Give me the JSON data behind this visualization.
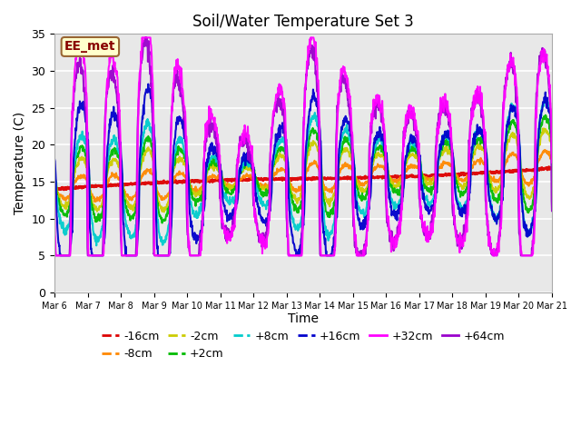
{
  "title": "Soil/Water Temperature Set 3",
  "xlabel": "Time",
  "ylabel": "Temperature (C)",
  "xlim": [
    0,
    15
  ],
  "ylim": [
    0,
    35
  ],
  "yticks": [
    0,
    5,
    10,
    15,
    20,
    25,
    30,
    35
  ],
  "xtick_labels": [
    "Mar 6",
    "Mar 7",
    "Mar 8",
    "Mar 9",
    "Mar 10",
    "Mar 11",
    "Mar 12",
    "Mar 13",
    "Mar 14",
    "Mar 15",
    "Mar 16",
    "Mar 17",
    "Mar 18",
    "Mar 19",
    "Mar 20",
    "Mar 21"
  ],
  "annotation_text": "EE_met",
  "annotation_facecolor": "#ffffcc",
  "annotation_edgecolor": "#996633",
  "annotation_textcolor": "#880000",
  "fig_facecolor": "#ffffff",
  "plot_bg_color": "#e8e8e8",
  "series_order": [
    "-16cm",
    "-8cm",
    "-2cm",
    "+2cm",
    "+8cm",
    "+16cm",
    "+32cm",
    "+64cm"
  ],
  "series": {
    "-16cm": {
      "color": "#dd0000",
      "lw": 2.0
    },
    "-8cm": {
      "color": "#ff8800",
      "lw": 1.5
    },
    "-2cm": {
      "color": "#cccc00",
      "lw": 1.5
    },
    "+2cm": {
      "color": "#00bb00",
      "lw": 1.5
    },
    "+8cm": {
      "color": "#00cccc",
      "lw": 1.5
    },
    "+16cm": {
      "color": "#0000cc",
      "lw": 1.5
    },
    "+32cm": {
      "color": "#ff00ff",
      "lw": 1.5
    },
    "+64cm": {
      "color": "#9900cc",
      "lw": 1.5
    }
  },
  "legend_ncol": 6,
  "legend_row2": [
    "+32cm",
    "+64cm"
  ]
}
